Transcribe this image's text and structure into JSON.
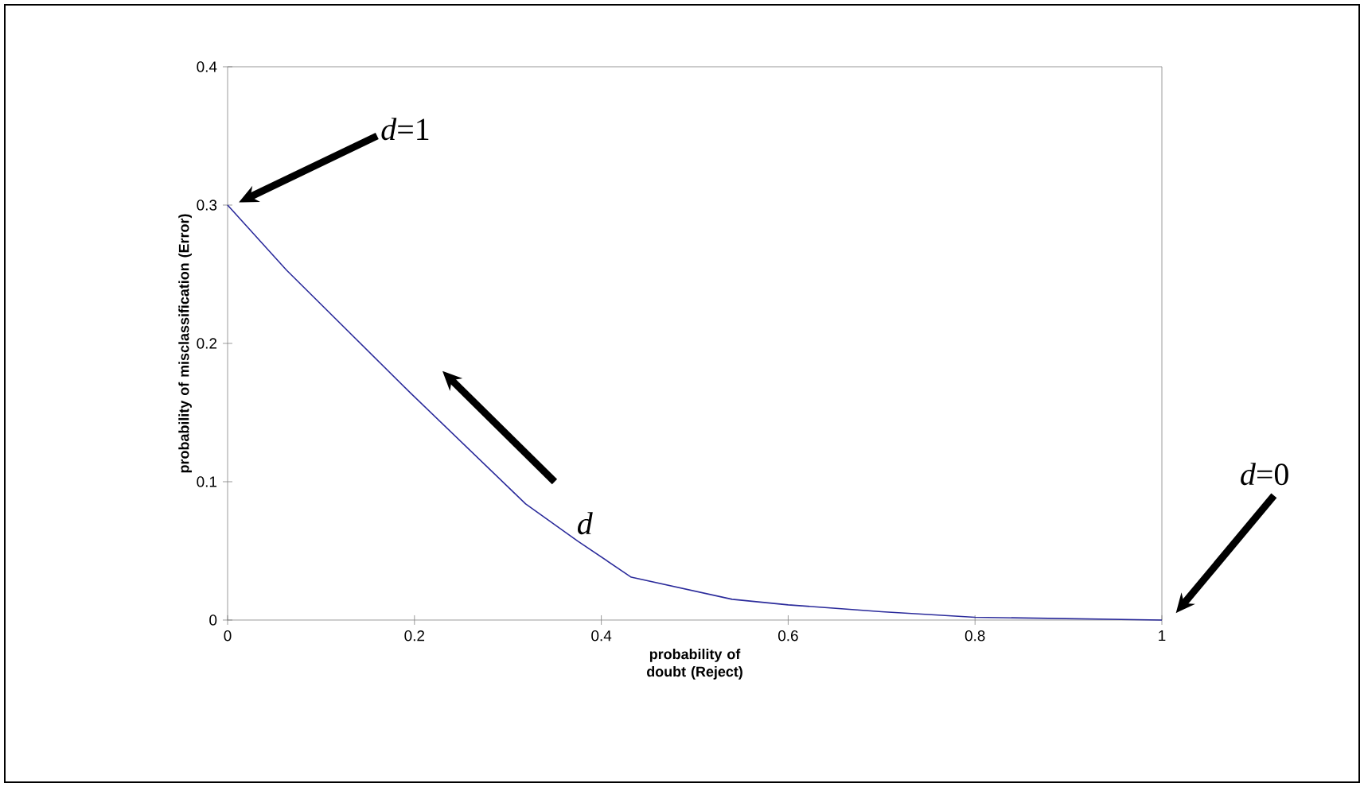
{
  "chart_data": {
    "type": "line",
    "xlabel": "probability of doubt (Reject)",
    "ylabel": "probability of misclassification (Error)",
    "x": [
      0,
      0.063,
      0.196,
      0.319,
      0.375,
      0.432,
      0.54,
      0.6,
      0.7,
      0.8,
      1
    ],
    "series": [
      {
        "color": "#2b2b9b",
        "values": [
          0.3,
          0.253,
          0.164,
          0.084,
          0.057,
          0.031,
          0.015,
          0.011,
          0.006,
          0.002,
          0
        ]
      }
    ],
    "xlim": [
      0,
      1
    ],
    "ylim": [
      0,
      0.4
    ],
    "xticks": [
      0,
      0.2,
      0.4,
      0.6,
      0.8,
      1
    ],
    "yticks": [
      0,
      0.1,
      0.2,
      0.3,
      0.4
    ],
    "grid": false,
    "legend": false,
    "marker": "none",
    "line_style": "solid",
    "annotations": [
      "*d*=1",
      "*d*",
      "*d*=0"
    ]
  }
}
